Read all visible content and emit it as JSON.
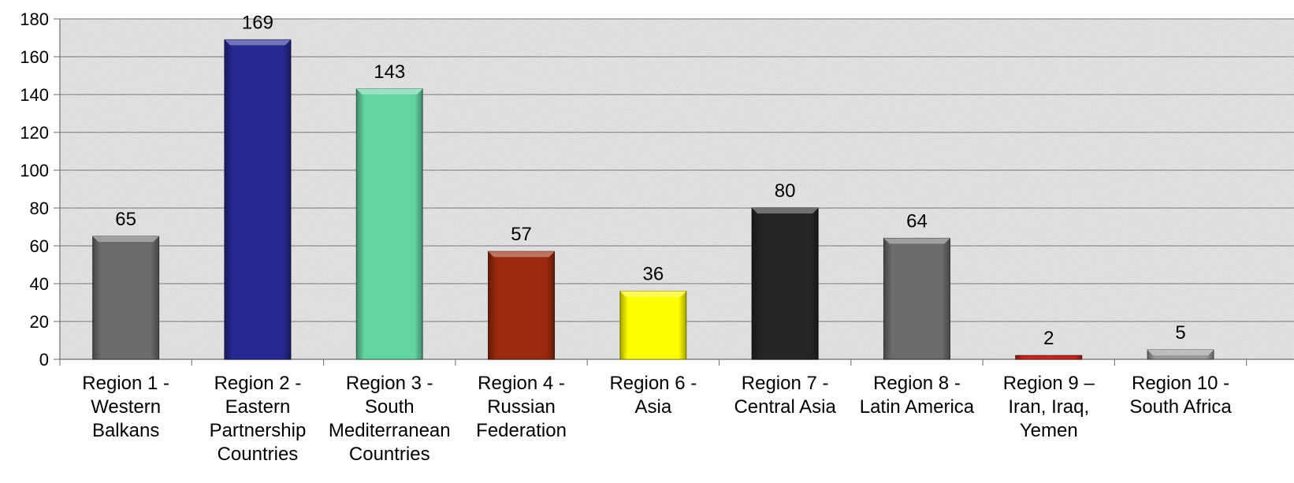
{
  "chart_data": {
    "type": "bar",
    "title": "",
    "xlabel": "",
    "ylabel": "",
    "ylim": [
      0,
      180
    ],
    "yticks": [
      0,
      20,
      40,
      60,
      80,
      100,
      120,
      140,
      160,
      180
    ],
    "grid": true,
    "legend": "none",
    "background": "grey granite texture",
    "categories": [
      [
        "Region 1 -",
        "Western",
        "Balkans"
      ],
      [
        "Region 2 -",
        "Eastern",
        "Partnership",
        "Countries"
      ],
      [
        "Region 3 -",
        "South",
        "Mediterranean",
        "Countries"
      ],
      [
        "Region 4 -",
        "Russian",
        "Federation"
      ],
      [
        "Region 6 -",
        "Asia"
      ],
      [
        "Region 7 -",
        "Central Asia"
      ],
      [
        "Region 8 -",
        "Latin America"
      ],
      [
        "Region 9 –",
        "Iran, Iraq,",
        "Yemen"
      ],
      [
        "Region 10 -",
        "South Africa"
      ]
    ],
    "values": [
      65,
      169,
      143,
      57,
      36,
      80,
      64,
      2,
      5
    ],
    "value_labels": [
      "65",
      "169",
      "143",
      "57",
      "36",
      "80",
      "64",
      "2",
      "5"
    ],
    "bar_colors": [
      "#6b6b6b",
      "#26288f",
      "#63d3a0",
      "#992a0e",
      "#ffff00",
      "#252525",
      "#6b6b6b",
      "#c8271f",
      "#9a9a9a"
    ]
  }
}
